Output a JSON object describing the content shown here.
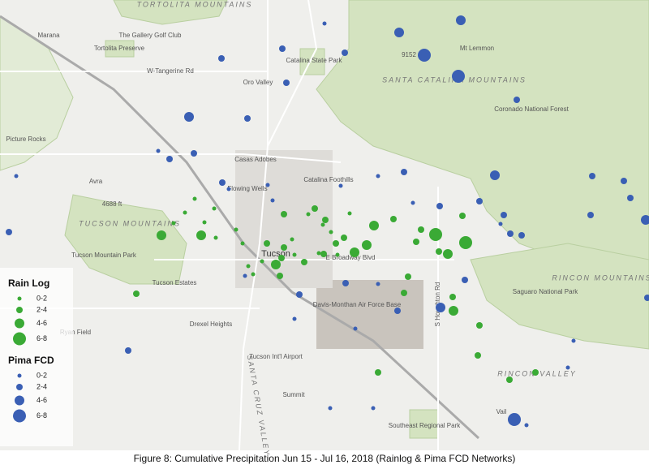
{
  "legend": {
    "groups": [
      {
        "title": "Rain Log",
        "color": "#3aaa35",
        "items": [
          "0-2",
          "2-4",
          "4-6",
          "6-8"
        ]
      },
      {
        "title": "Pima FCD",
        "color": "#3a5fb4",
        "items": [
          "0-2",
          "2-4",
          "4-6",
          "6-8"
        ]
      }
    ]
  },
  "places": [
    "TORTOLITA MOUNTAINS",
    "Marana",
    "The Gallery Golf Club",
    "Tortolita Preserve",
    "W-Tangerine Rd",
    "Oro Valley",
    "Catalina State Park",
    "9152",
    "Mt Lemmon",
    "SANTA CATALINA MOUNTAINS",
    "Coronado National Forest",
    "Picture Rocks",
    "Casas Adobes",
    "Catalina Foothills",
    "Flowing Wells",
    "Avra",
    "4688 ft",
    "TUCSON MOUNTAINS",
    "Tucson Mountain Park",
    "Tucson",
    "E Broadway Blvd",
    "Tucson Estates",
    "Davis-Monthan Air Force Base",
    "RINCON MOUNTAINS",
    "Saguaro National Park",
    "Drexel Heights",
    "Ryan Field",
    "Tucson Int'l Airport",
    "SANTA CRUZ VALLEY",
    "Summit",
    "RINCON VALLEY",
    "Vail",
    "Southeast Regional Park",
    "S Houghton Rd"
  ],
  "caption": "Figure 8: Cumulative Precipitation Jun 15 - Jul 16, 2018 (Rainlog & Pima FCD Networks)"
}
